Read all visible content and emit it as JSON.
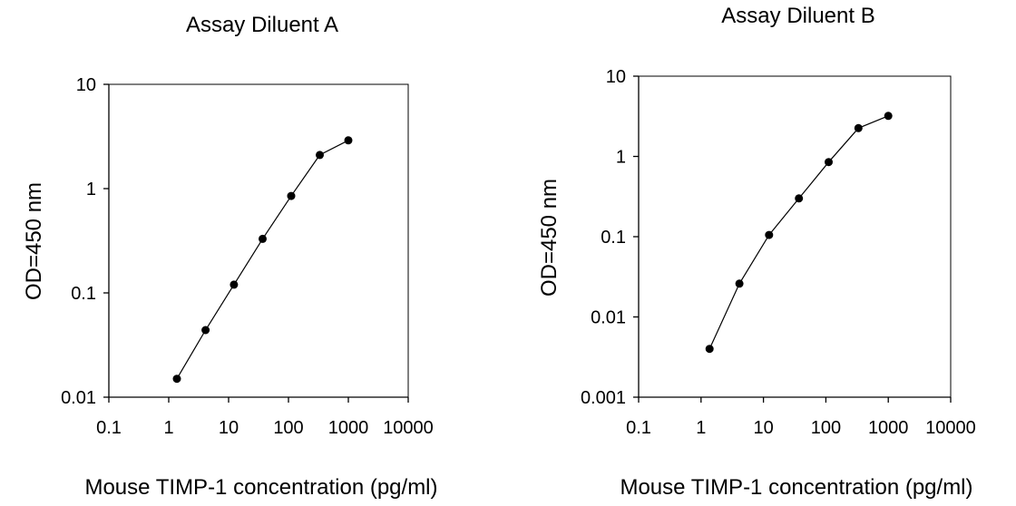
{
  "chart_data": [
    {
      "type": "scatter",
      "title": "Assay Diluent A",
      "xlabel": "Mouse TIMP-1 concentration (pg/ml)",
      "ylabel": "OD=450 nm",
      "x_scale": "log",
      "y_scale": "log",
      "xlim": [
        0.1,
        10000
      ],
      "ylim": [
        0.01,
        10
      ],
      "x_ticks": [
        "0.1",
        "1",
        "10",
        "100",
        "1000",
        "10000"
      ],
      "y_ticks": [
        "10",
        "1",
        "0.1",
        "0.01"
      ],
      "grid": false,
      "series": [
        {
          "x": [
            1.37,
            4.12,
            12.3,
            37.0,
            111,
            333,
            1000
          ],
          "y": [
            0.015,
            0.044,
            0.12,
            0.33,
            0.85,
            2.1,
            2.9
          ]
        }
      ]
    },
    {
      "type": "scatter",
      "title": "Assay Diluent B",
      "xlabel": "Mouse TIMP-1 concentration (pg/ml)",
      "ylabel": "OD=450 nm",
      "x_scale": "log",
      "y_scale": "log",
      "xlim": [
        0.1,
        10000
      ],
      "ylim": [
        0.001,
        10
      ],
      "x_ticks": [
        "0.1",
        "1",
        "10",
        "100",
        "1000",
        "10000"
      ],
      "y_ticks": [
        "10",
        "1",
        "0.1",
        "0.01",
        "0.001"
      ],
      "grid": false,
      "series": [
        {
          "x": [
            1.37,
            4.12,
            12.3,
            37.0,
            111,
            333,
            1000
          ],
          "y": [
            0.004,
            0.026,
            0.105,
            0.3,
            0.85,
            2.25,
            3.2
          ]
        }
      ]
    }
  ]
}
